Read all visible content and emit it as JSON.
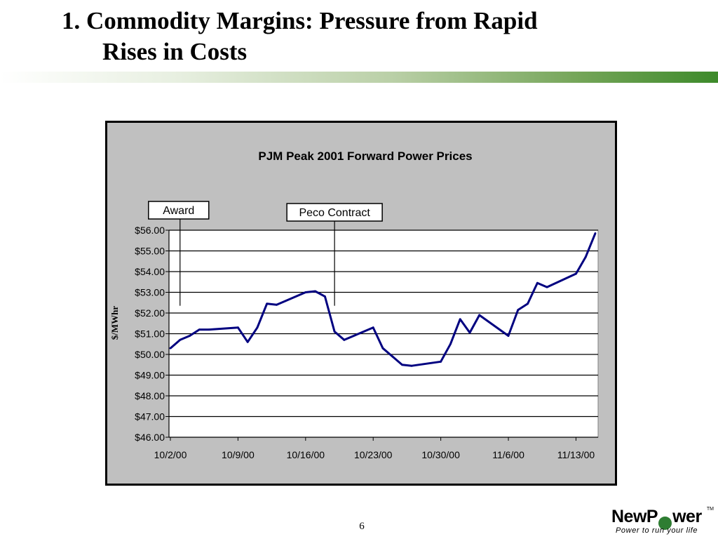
{
  "slide": {
    "title_line1": "1.  Commodity Margins:  Pressure from Rapid",
    "title_line2": "Rises in Costs",
    "page_number": "6"
  },
  "logo": {
    "name": "NewPower",
    "trademark": "TM",
    "tagline": "Power to run your life",
    "accent_color": "#2e7d32"
  },
  "chart_data": {
    "type": "line",
    "title": "PJM Peak 2001 Forward Power Prices",
    "xlabel": "",
    "ylabel": "$/MWhr",
    "ylim": [
      46,
      56
    ],
    "yticks": [
      "$46.00",
      "$47.00",
      "$48.00",
      "$49.00",
      "$50.00",
      "$51.00",
      "$52.00",
      "$53.00",
      "$54.00",
      "$55.00",
      "$56.00"
    ],
    "xticks": [
      "10/2/00",
      "10/9/00",
      "10/16/00",
      "10/23/00",
      "10/30/00",
      "11/6/00",
      "11/13/00"
    ],
    "x_range": [
      "2000-10-02",
      "2000-11-15"
    ],
    "grid": true,
    "line_color": "#000080",
    "plot_background": "#ffffff",
    "frame_background": "#c0c0c0",
    "series": [
      {
        "x": [
          "2000-10-02",
          "2000-10-03",
          "2000-10-04",
          "2000-10-05",
          "2000-10-06",
          "2000-10-09",
          "2000-10-10",
          "2000-10-11",
          "2000-10-12",
          "2000-10-13",
          "2000-10-16",
          "2000-10-17",
          "2000-10-18",
          "2000-10-19",
          "2000-10-20",
          "2000-10-23",
          "2000-10-24",
          "2000-10-25",
          "2000-10-26",
          "2000-10-27",
          "2000-10-30",
          "2000-10-31",
          "2000-11-01",
          "2000-11-02",
          "2000-11-03",
          "2000-11-06",
          "2000-11-07",
          "2000-11-08",
          "2000-11-09",
          "2000-11-10",
          "2000-11-13",
          "2000-11-14",
          "2000-11-15"
        ],
        "values": [
          50.3,
          50.7,
          50.9,
          51.2,
          51.2,
          51.3,
          50.6,
          51.3,
          52.45,
          52.4,
          53.0,
          53.05,
          52.8,
          51.1,
          50.7,
          51.3,
          50.3,
          49.9,
          49.5,
          49.45,
          49.65,
          50.5,
          51.7,
          51.05,
          51.9,
          50.9,
          52.15,
          52.45,
          53.45,
          53.25,
          53.9,
          54.7,
          55.85
        ]
      }
    ],
    "annotations": [
      {
        "label": "Award",
        "date": "2000-10-03"
      },
      {
        "label": "Peco Contract",
        "date": "2000-10-19"
      }
    ]
  }
}
